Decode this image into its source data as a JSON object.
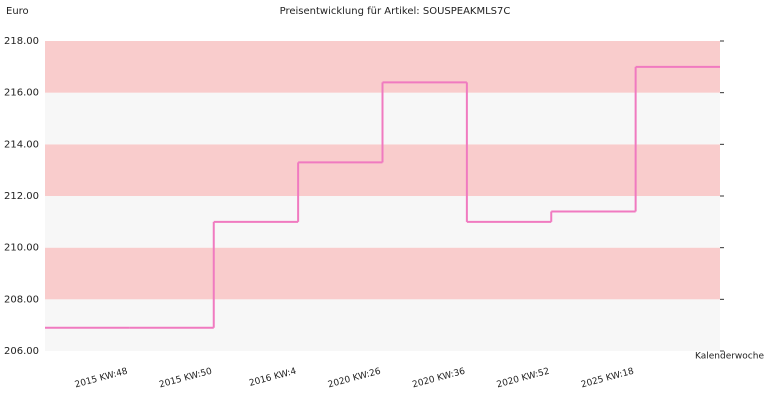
{
  "chart_data": {
    "type": "step",
    "title": "Preisentwicklung für Artikel: SOUSPEAKMLS7C",
    "y_label": "Euro",
    "x_label": "Kalenderwoche",
    "categories": [
      null,
      "2015 KW:48",
      "2015 KW:50",
      "2016 KW:4",
      "2020 KW:26",
      "2020 KW:36",
      "2020 KW:52",
      "2025 KW:18"
    ],
    "values": [
      206.9,
      206.9,
      211.0,
      213.3,
      216.4,
      211.0,
      211.4,
      217.0
    ],
    "color": "#f07ac0",
    "ylim": [
      206,
      218
    ],
    "yticks": [
      {
        "value": 206,
        "label": "206.00"
      },
      {
        "value": 208,
        "label": "208.00"
      },
      {
        "value": 210,
        "label": "210.00"
      },
      {
        "value": 212,
        "label": "212.00"
      },
      {
        "value": 214,
        "label": "214.00"
      },
      {
        "value": 216,
        "label": "216.00"
      },
      {
        "value": 218,
        "label": "218.00"
      }
    ],
    "band_colors": [
      "#f7f7f7",
      "#f9cccc"
    ]
  }
}
